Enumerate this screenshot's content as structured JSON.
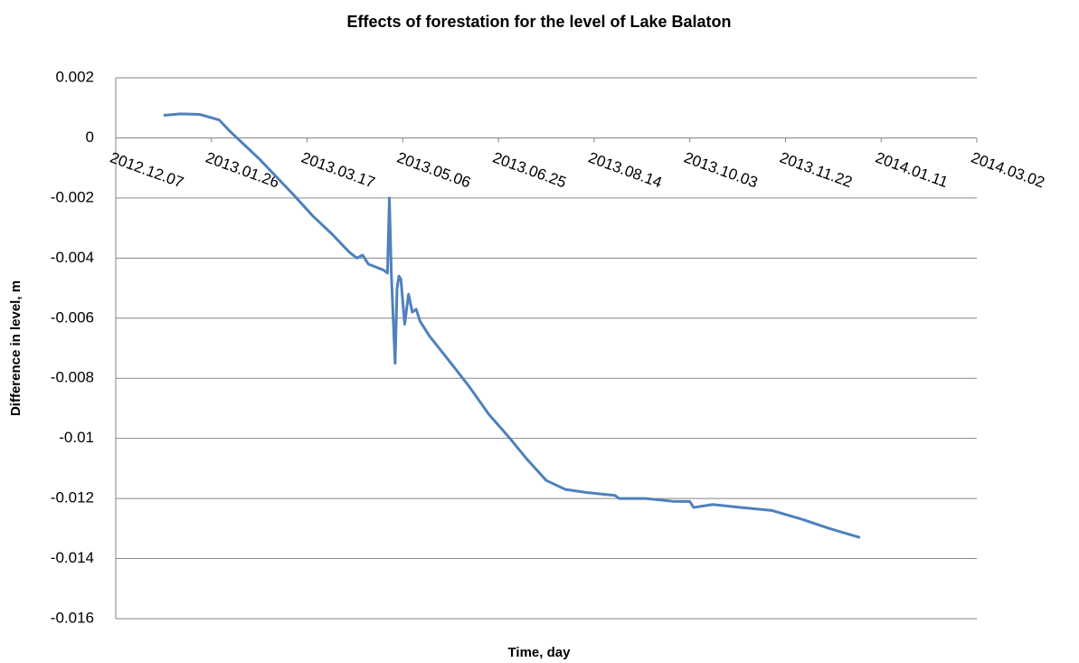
{
  "chart_data": {
    "type": "line",
    "title": "Effects of forestation for the level of Lake Balaton",
    "x_label": "Time, day",
    "y_label": "Difference in level, m",
    "xlim": [
      "2012.12.07",
      "2014.03.02"
    ],
    "xticks": [
      "2012.12.07",
      "2013.01.26",
      "2013.03.17",
      "2013.05.06",
      "2013.06.25",
      "2013.08.14",
      "2013.10.03",
      "2013.11.22",
      "2014.01.11",
      "2014.03.02"
    ],
    "ylim": [
      -0.016,
      0.002
    ],
    "yticks": [
      -0.016,
      -0.014,
      -0.012,
      -0.01,
      -0.008,
      -0.006,
      -0.004,
      -0.002,
      0,
      0.002
    ],
    "grid": true,
    "series": [
      {
        "color": "#4f81bd",
        "x": [
          "2013.01.01",
          "2013.01.10",
          "2013.01.20",
          "2013.01.30",
          "2013.02.05",
          "2013.02.10",
          "2013.02.20",
          "2013.03.01",
          "2013.03.10",
          "2013.03.20",
          "2013.03.30",
          "2013.04.08",
          "2013.04.12",
          "2013.04.15",
          "2013.04.18",
          "2013.04.22",
          "2013.04.26",
          "2013.04.28",
          "2013.04.29",
          "2013.04.30",
          "2013.05.02",
          "2013.05.03",
          "2013.05.04",
          "2013.05.05",
          "2013.05.07",
          "2013.05.09",
          "2013.05.11",
          "2013.05.13",
          "2013.05.15",
          "2013.05.20",
          "2013.05.30",
          "2013.06.10",
          "2013.06.20",
          "2013.07.01",
          "2013.07.10",
          "2013.07.20",
          "2013.07.30",
          "2013.08.10",
          "2013.08.25",
          "2013.08.27",
          "2013.09.10",
          "2013.09.25",
          "2013.10.03",
          "2013.10.05",
          "2013.10.15",
          "2013.10.30",
          "2013.11.15",
          "2013.12.01",
          "2013.12.15",
          "2013.12.31"
        ],
        "values": [
          0.00075,
          0.0008,
          0.00078,
          0.0006,
          0.0002,
          -0.0001,
          -0.0007,
          -0.0013,
          -0.0019,
          -0.0026,
          -0.0032,
          -0.0038,
          -0.004,
          -0.0039,
          -0.0042,
          -0.0043,
          -0.0044,
          -0.0045,
          -0.002,
          -0.0045,
          -0.0075,
          -0.005,
          -0.0046,
          -0.0047,
          -0.0062,
          -0.0052,
          -0.0058,
          -0.0057,
          -0.0061,
          -0.0066,
          -0.0074,
          -0.0083,
          -0.0092,
          -0.01,
          -0.0107,
          -0.0114,
          -0.0117,
          -0.0118,
          -0.0119,
          -0.012,
          -0.012,
          -0.0121,
          -0.0121,
          -0.0123,
          -0.0122,
          -0.0123,
          -0.0124,
          -0.0127,
          -0.013,
          -0.0133
        ]
      }
    ]
  }
}
